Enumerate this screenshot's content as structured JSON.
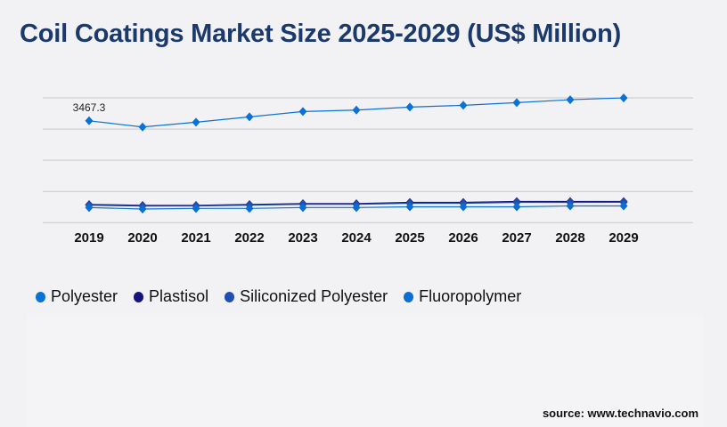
{
  "chart_data": {
    "type": "line",
    "title": "Coil Coatings Market Size 2025-2029 (US$ Million)",
    "categories": [
      "2019",
      "2020",
      "2021",
      "2022",
      "2023",
      "2024",
      "2025",
      "2026",
      "2027",
      "2028",
      "2029"
    ],
    "ylim": [
      0,
      4248
    ],
    "grid": true,
    "legend_position": "bottom-left",
    "series": [
      {
        "name": "Polyester",
        "color": "#0a72d6",
        "values": [
          3467.3,
          3256,
          3419,
          3601,
          3782,
          3831,
          3933,
          3994,
          4085,
          4185,
          4246
        ]
      },
      {
        "name": "Plastisol",
        "color": "#14147a",
        "values": [
          614,
          584,
          584,
          614,
          645,
          645,
          685,
          685,
          715,
          715,
          715
        ]
      },
      {
        "name": "Siliconized Polyester",
        "color": "#1f4fb0",
        "values": [
          594,
          564,
          570,
          594,
          625,
          625,
          660,
          660,
          690,
          690,
          695
        ]
      },
      {
        "name": "Fluoropolymer",
        "color": "#0a6fd0",
        "values": [
          514,
          463,
          484,
          484,
          514,
          514,
          540,
          540,
          540,
          570,
          570
        ]
      }
    ],
    "data_labels": [
      {
        "series": "Polyester",
        "category": "2019",
        "text": "3467.3"
      }
    ]
  },
  "source": "source: www.technavio.com"
}
